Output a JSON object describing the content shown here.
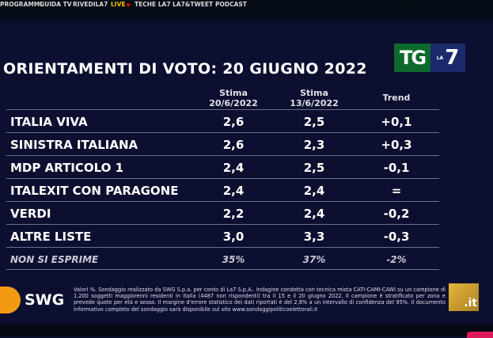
{
  "nav": [
    "PROGRAMMI",
    "GUIDA TV",
    "RIVEDILA7",
    "LIVE",
    "TECHE LA7",
    "LA7&TWEET",
    "PODCAST"
  ],
  "title": "ORIENTAMENTI DI VOTO: 20 GIUGNO 2022",
  "logo": {
    "tg": "TG",
    "la": "LA",
    "seven": "7"
  },
  "headers": {
    "c1a": "Stima",
    "c1b": "20/6/2022",
    "c2a": "Stima",
    "c2b": "13/6/2022",
    "trend": "Trend"
  },
  "rows": [
    {
      "name": "ITALIA VIVA",
      "a": "2,6",
      "b": "2,5",
      "t": "+0,1"
    },
    {
      "name": "SINISTRA ITALIANA",
      "a": "2,6",
      "b": "2,3",
      "t": "+0,3"
    },
    {
      "name": "MDP ARTICOLO 1",
      "a": "2,4",
      "b": "2,5",
      "t": "-0,1"
    },
    {
      "name": "ITALEXIT CON PARAGONE",
      "a": "2,4",
      "b": "2,4",
      "t": "="
    },
    {
      "name": "VERDI",
      "a": "2,2",
      "b": "2,4",
      "t": "-0,2"
    },
    {
      "name": "ALTRE LISTE",
      "a": "3,0",
      "b": "3,3",
      "t": "-0,3"
    },
    {
      "name": "NON SI ESPRIME",
      "a": "35%",
      "b": "37%",
      "t": "-2%"
    }
  ],
  "swg": "SWG",
  "note": "Valori %. Sondaggio realizzato da SWG S.p.a. per conto di La7 S.p.A.. Indagine condotta con tecnica mista CATI-CAMI-CAWI su un campione di 1.200 soggetti maggiorenni residenti in Italia (4487 non rispondenti) tra il 15 e il 20 giugno 2022. Il campione è stratificato per zona e prevede quote per età e sesso. Il margine d'errore statistico dei dati riportati è del 2,8% a un intervallo di confidenza del 95%. Il documento informativo completo del sondaggio sarà disponibile sul sito www.sondaggipoliticoelettorali.it",
  "la7it": ".it"
}
